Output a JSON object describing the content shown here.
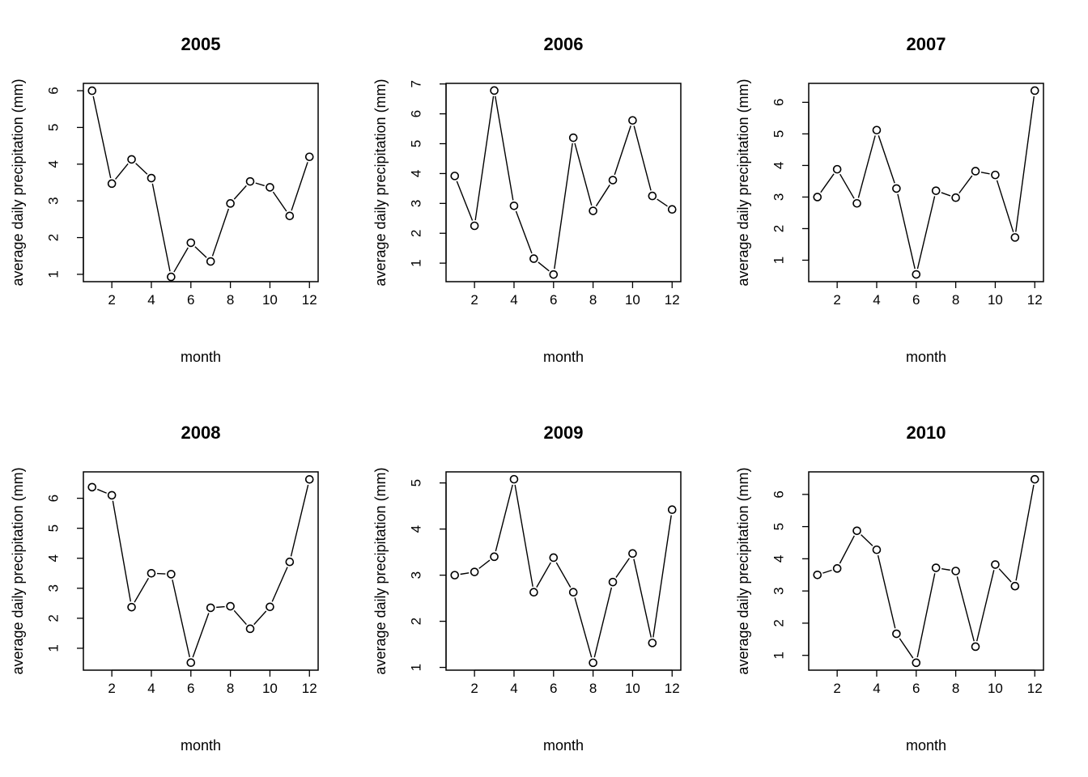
{
  "chart_data": [
    {
      "type": "line",
      "title": "2005",
      "xlabel": "month",
      "ylabel": "average daily precipitation (mm)",
      "x": [
        1,
        2,
        3,
        4,
        5,
        6,
        7,
        8,
        9,
        10,
        11,
        12
      ],
      "values": [
        6.0,
        3.47,
        4.13,
        3.62,
        0.93,
        1.86,
        1.35,
        2.93,
        3.53,
        3.37,
        2.59,
        4.2
      ],
      "xlim": [
        0.56,
        12.44
      ],
      "ylim": [
        0.8,
        6.2
      ],
      "xticks": [
        "2",
        "4",
        "6",
        "8",
        "10",
        "12"
      ],
      "yticks": [
        "1",
        "2",
        "3",
        "4",
        "5",
        "6"
      ],
      "markers": "open-circle",
      "grid": false
    },
    {
      "type": "line",
      "title": "2006",
      "xlabel": "month",
      "ylabel": "average daily precipitation (mm)",
      "x": [
        1,
        2,
        3,
        4,
        5,
        6,
        7,
        8,
        9,
        10,
        11,
        12
      ],
      "values": [
        3.92,
        2.25,
        6.78,
        2.92,
        1.15,
        0.62,
        5.2,
        2.75,
        3.78,
        5.78,
        3.25,
        2.8
      ],
      "xlim": [
        0.56,
        12.44
      ],
      "ylim": [
        0.38,
        7.02
      ],
      "xticks": [
        "2",
        "4",
        "6",
        "8",
        "10",
        "12"
      ],
      "yticks": [
        "1",
        "2",
        "3",
        "4",
        "5",
        "6",
        "7"
      ],
      "markers": "open-circle",
      "grid": false
    },
    {
      "type": "line",
      "title": "2007",
      "xlabel": "month",
      "ylabel": "average daily precipitation (mm)",
      "x": [
        1,
        2,
        3,
        4,
        5,
        6,
        7,
        8,
        9,
        10,
        11,
        12
      ],
      "values": [
        3.0,
        3.88,
        2.8,
        5.12,
        3.27,
        0.55,
        3.2,
        2.98,
        3.82,
        3.7,
        1.72,
        6.37
      ],
      "xlim": [
        0.56,
        12.44
      ],
      "ylim": [
        0.32,
        6.6
      ],
      "xticks": [
        "2",
        "4",
        "6",
        "8",
        "10",
        "12"
      ],
      "yticks": [
        "1",
        "2",
        "3",
        "4",
        "5",
        "6"
      ],
      "markers": "open-circle",
      "grid": false
    },
    {
      "type": "line",
      "title": "2008",
      "xlabel": "month",
      "ylabel": "average daily precipitation (mm)",
      "x": [
        1,
        2,
        3,
        4,
        5,
        6,
        7,
        8,
        9,
        10,
        11,
        12
      ],
      "values": [
        6.37,
        6.1,
        2.37,
        3.5,
        3.47,
        0.52,
        2.35,
        2.4,
        1.65,
        2.38,
        3.88,
        6.63
      ],
      "xlim": [
        0.56,
        12.44
      ],
      "ylim": [
        0.27,
        6.88
      ],
      "xticks": [
        "2",
        "4",
        "6",
        "8",
        "10",
        "12"
      ],
      "yticks": [
        "1",
        "2",
        "3",
        "4",
        "5",
        "6"
      ],
      "markers": "open-circle",
      "grid": false
    },
    {
      "type": "line",
      "title": "2009",
      "xlabel": "month",
      "ylabel": "average daily precipitation (mm)",
      "x": [
        1,
        2,
        3,
        4,
        5,
        6,
        7,
        8,
        9,
        10,
        11,
        12
      ],
      "values": [
        3.0,
        3.07,
        3.4,
        5.08,
        2.63,
        3.38,
        2.63,
        1.1,
        2.85,
        3.47,
        1.53,
        4.42
      ],
      "xlim": [
        0.56,
        12.44
      ],
      "ylim": [
        0.94,
        5.24
      ],
      "xticks": [
        "2",
        "4",
        "6",
        "8",
        "10",
        "12"
      ],
      "yticks": [
        "1",
        "2",
        "3",
        "4",
        "5"
      ],
      "markers": "open-circle",
      "grid": false
    },
    {
      "type": "line",
      "title": "2010",
      "xlabel": "month",
      "ylabel": "average daily precipitation (mm)",
      "x": [
        1,
        2,
        3,
        4,
        5,
        6,
        7,
        8,
        9,
        10,
        11,
        12
      ],
      "values": [
        3.5,
        3.7,
        4.87,
        4.28,
        1.67,
        0.77,
        3.72,
        3.62,
        1.27,
        3.82,
        3.15,
        6.47
      ],
      "xlim": [
        0.56,
        12.44
      ],
      "ylim": [
        0.54,
        6.7
      ],
      "xticks": [
        "2",
        "4",
        "6",
        "8",
        "10",
        "12"
      ],
      "yticks": [
        "1",
        "2",
        "3",
        "4",
        "5",
        "6"
      ],
      "markers": "open-circle",
      "grid": false
    }
  ]
}
